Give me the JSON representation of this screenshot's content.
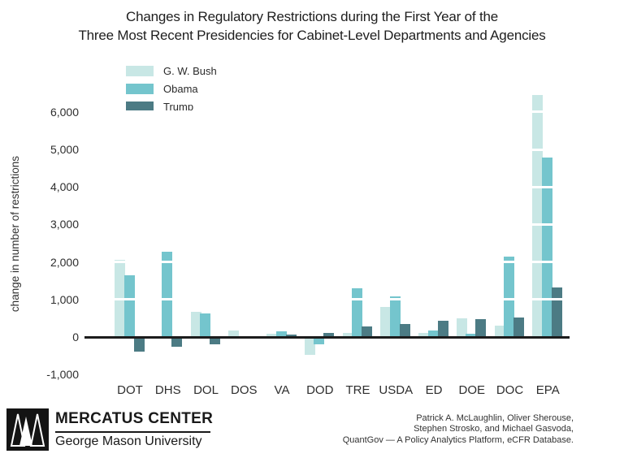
{
  "title": {
    "line1": "Changes in Regulatory Restrictions during the First Year of the",
    "line2": "Three Most Recent Presidencies for Cabinet-Level Departments and Agencies"
  },
  "y_axis": {
    "label": "change in number of restrictions"
  },
  "chart_data": {
    "type": "bar",
    "title": "Changes in Regulatory Restrictions during the First Year of the Three Most Recent Presidencies for Cabinet-Level Departments and Agencies",
    "ylabel": "change in number of restrictions",
    "ylim": [
      -1000,
      6600
    ],
    "grid": "white gridlines overlaid on bars",
    "legend_position": "top-left",
    "categories": [
      "DOT",
      "DHS",
      "DOL",
      "DOS",
      "VA",
      "DOD",
      "TRE",
      "USDA",
      "ED",
      "DOE",
      "DOC",
      "EPA"
    ],
    "series": [
      {
        "name": "G. W. Bush",
        "color": "#c8e7e5",
        "values": [
          2050,
          0,
          670,
          175,
          90,
          -480,
          100,
          800,
          110,
          505,
          300,
          6440
        ]
      },
      {
        "name": "Obama",
        "color": "#74c5cd",
        "values": [
          1650,
          2270,
          620,
          0,
          160,
          -200,
          1300,
          1080,
          170,
          95,
          2150,
          4780
        ]
      },
      {
        "name": "Trump",
        "color": "#4c7b84",
        "values": [
          -400,
          -250,
          -190,
          0,
          60,
          110,
          290,
          340,
          430,
          470,
          525,
          1330
        ]
      }
    ],
    "y_ticks": [
      {
        "label": "6,000",
        "value": 6000
      },
      {
        "label": "5,000",
        "value": 5000
      },
      {
        "label": "4,000",
        "value": 4000
      },
      {
        "label": "3,000",
        "value": 3000
      },
      {
        "label": "2,000",
        "value": 2000
      },
      {
        "label": "1,000",
        "value": 1000
      },
      {
        "label": "0",
        "value": 0
      },
      {
        "label": "-1,000",
        "value": -1000
      }
    ]
  },
  "footer": {
    "logo_title": "MERCATUS CENTER",
    "logo_subtitle": "George Mason University",
    "attribution": [
      "Patrick A. McLaughlin, Oliver Sherouse,",
      "Stephen Strosko, and Michael Gasvoda,",
      "QuantGov — A Policy Analytics Platform, eCFR Database."
    ]
  }
}
